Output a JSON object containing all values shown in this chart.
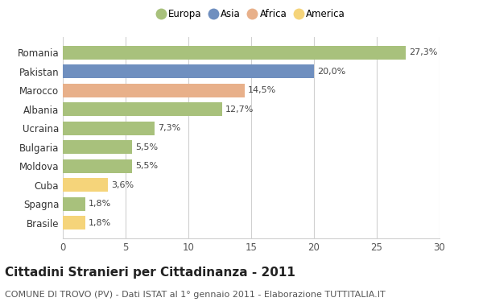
{
  "countries": [
    "Romania",
    "Pakistan",
    "Marocco",
    "Albania",
    "Ucraina",
    "Bulgaria",
    "Moldova",
    "Cuba",
    "Spagna",
    "Brasile"
  ],
  "values": [
    27.3,
    20.0,
    14.5,
    12.7,
    7.3,
    5.5,
    5.5,
    3.6,
    1.8,
    1.8
  ],
  "labels": [
    "27,3%",
    "20,0%",
    "14,5%",
    "12,7%",
    "7,3%",
    "5,5%",
    "5,5%",
    "3,6%",
    "1,8%",
    "1,8%"
  ],
  "colors": [
    "#a8c17c",
    "#6f8fbf",
    "#e8b08a",
    "#a8c17c",
    "#a8c17c",
    "#a8c17c",
    "#a8c17c",
    "#f5d47a",
    "#a8c17c",
    "#f5d47a"
  ],
  "legend_labels": [
    "Europa",
    "Asia",
    "Africa",
    "America"
  ],
  "legend_colors": [
    "#a8c17c",
    "#6f8fbf",
    "#e8b08a",
    "#f5d47a"
  ],
  "title": "Cittadini Stranieri per Cittadinanza - 2011",
  "subtitle": "COMUNE DI TROVO (PV) - Dati ISTAT al 1° gennaio 2011 - Elaborazione TUTTITALIA.IT",
  "xlim": [
    0,
    30
  ],
  "xticks": [
    0,
    5,
    10,
    15,
    20,
    25,
    30
  ],
  "background_color": "#ffffff",
  "grid_color": "#d0d0d0",
  "bar_height": 0.72,
  "title_fontsize": 11,
  "subtitle_fontsize": 8,
  "label_fontsize": 8,
  "tick_fontsize": 8.5
}
